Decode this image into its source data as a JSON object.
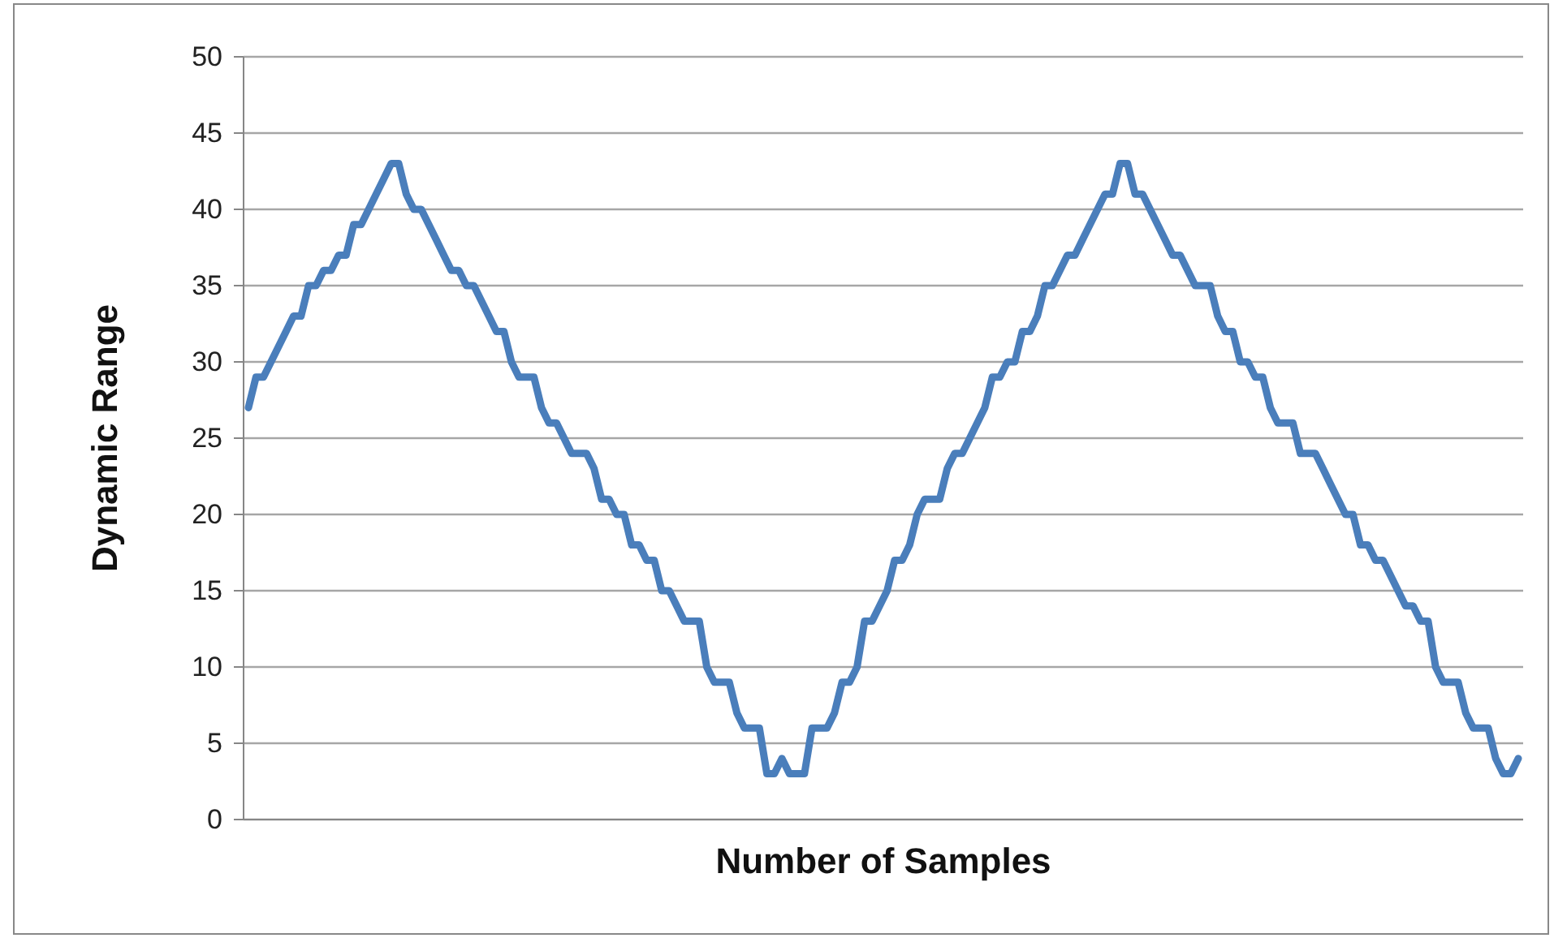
{
  "chart_data": {
    "type": "line",
    "xlabel": "Number of Samples",
    "ylabel": "Dynamic Range",
    "ylim": [
      0,
      50
    ],
    "yticks": [
      0,
      5,
      10,
      15,
      20,
      25,
      30,
      35,
      40,
      45,
      50
    ],
    "grid": "y",
    "marker": "none",
    "line_style": "solid",
    "categories": [
      null,
      null,
      null,
      null,
      null,
      null,
      null,
      null,
      null,
      null,
      null,
      null,
      null,
      null,
      null,
      null,
      null,
      null,
      null,
      null,
      null,
      null,
      null,
      null,
      null,
      null,
      null,
      null,
      null,
      null,
      null,
      null,
      null,
      null,
      null,
      null,
      null,
      null,
      null,
      null,
      null,
      null,
      null,
      null,
      null,
      null,
      null,
      null,
      null,
      null,
      null,
      null,
      null,
      null,
      null,
      null,
      null,
      null,
      null,
      null,
      null,
      null,
      null,
      null,
      null,
      null,
      null,
      null,
      null,
      null,
      null,
      null,
      null,
      null,
      null,
      null,
      null,
      null,
      null,
      null,
      null,
      null,
      null,
      null,
      null,
      null,
      null,
      null,
      null,
      null,
      null,
      null,
      null,
      null,
      null,
      null,
      null,
      null,
      null,
      null,
      null,
      null,
      null,
      null,
      null,
      null,
      null,
      null,
      null,
      null,
      null,
      null,
      null,
      null,
      null,
      null,
      null,
      null,
      null,
      null,
      null,
      null,
      null,
      null,
      null,
      null,
      null,
      null,
      null,
      null,
      null,
      null,
      null,
      null,
      null,
      null,
      null,
      null,
      null,
      null,
      null,
      null,
      null,
      null,
      null,
      null,
      null,
      null,
      null,
      null,
      null,
      null,
      null,
      null,
      null,
      null,
      null,
      null,
      null,
      null,
      null,
      null,
      null,
      null,
      null,
      null,
      null,
      null,
      null,
      null
    ],
    "series": [
      {
        "color": "#4a7ebb",
        "values": [
          27,
          29,
          29,
          30,
          31,
          32,
          33,
          33,
          35,
          35,
          36,
          36,
          37,
          37,
          39,
          39,
          40,
          41,
          42,
          43,
          43,
          41,
          40,
          40,
          39,
          38,
          37,
          36,
          36,
          35,
          35,
          34,
          33,
          32,
          32,
          30,
          29,
          29,
          29,
          27,
          26,
          26,
          25,
          24,
          24,
          24,
          23,
          21,
          21,
          20,
          20,
          18,
          18,
          17,
          17,
          15,
          15,
          14,
          13,
          13,
          13,
          10,
          9,
          9,
          9,
          7,
          6,
          6,
          6,
          3,
          3,
          4,
          3,
          3,
          3,
          6,
          6,
          6,
          7,
          9,
          9,
          10,
          13,
          13,
          14,
          15,
          17,
          17,
          18,
          20,
          21,
          21,
          21,
          23,
          24,
          24,
          25,
          26,
          27,
          29,
          29,
          30,
          30,
          32,
          32,
          33,
          35,
          35,
          36,
          37,
          37,
          38,
          39,
          40,
          41,
          41,
          43,
          43,
          41,
          41,
          40,
          39,
          38,
          37,
          37,
          36,
          35,
          35,
          35,
          33,
          32,
          32,
          30,
          30,
          29,
          29,
          27,
          26,
          26,
          26,
          24,
          24,
          24,
          23,
          22,
          21,
          20,
          20,
          18,
          18,
          17,
          17,
          16,
          15,
          14,
          14,
          13,
          13,
          10,
          9,
          9,
          9,
          7,
          6,
          6,
          6,
          4,
          3,
          3,
          4
        ]
      }
    ]
  }
}
